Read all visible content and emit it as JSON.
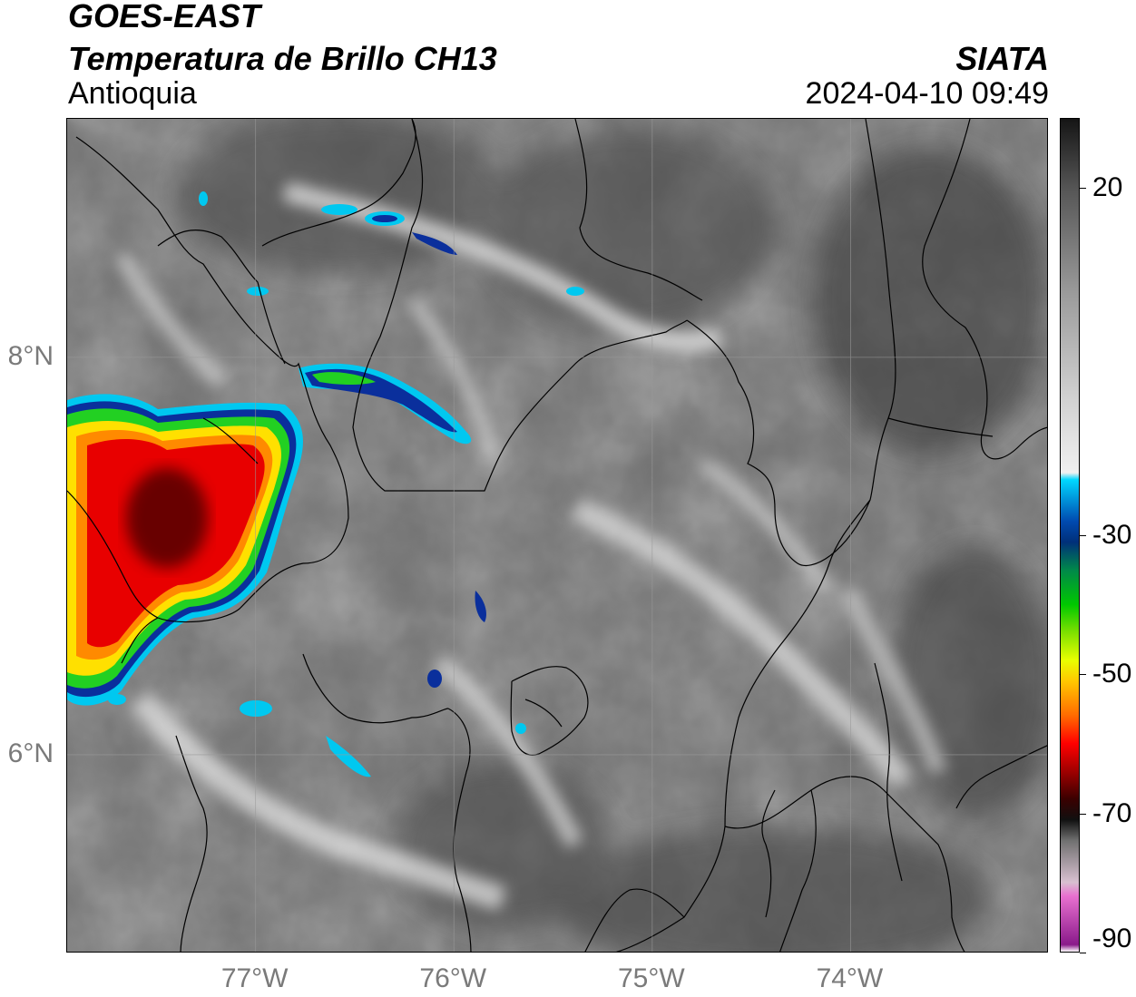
{
  "header": {
    "title": "GOES-EAST",
    "subtitle": "Temperatura de Brillo CH13",
    "region": "Antioquia",
    "organization": "SIATA",
    "datetime": "2024-04-10 09:49"
  },
  "map": {
    "lon_range": [
      -77.95,
      -73.0
    ],
    "lat_range": [
      5.0,
      9.2
    ],
    "lon_ticks": [
      {
        "value": -77,
        "label": "77°W"
      },
      {
        "value": -76,
        "label": "76°W"
      },
      {
        "value": -75,
        "label": "75°W"
      },
      {
        "value": -74,
        "label": "74°W"
      }
    ],
    "lat_ticks": [
      {
        "value": 8,
        "label": "8°N"
      },
      {
        "value": 6,
        "label": "6°N"
      }
    ],
    "grid": true,
    "colors": {
      "background_gray": "#7a7a7a",
      "cloud_white": "#f2f2f2",
      "cold_cyan": "#00c8f0",
      "cold_blue": "#0a2f9c",
      "cold_green": "#22d022",
      "cold_yellow": "#ffe000",
      "cold_orange": "#ff8a00",
      "cold_red": "#e80000",
      "core_darkred": "#4a0000",
      "border_line": "#000000"
    }
  },
  "colorbar": {
    "range": [
      -90,
      30
    ],
    "ticks": [
      {
        "value": 20,
        "label": "20"
      },
      {
        "value": -30,
        "label": "-30"
      },
      {
        "value": -50,
        "label": "-50"
      },
      {
        "value": -70,
        "label": "-70"
      },
      {
        "value": -90,
        "label": "-90"
      }
    ],
    "stops": [
      {
        "value": -90,
        "color": "#ffffff"
      },
      {
        "value": -89,
        "color": "#8a1a8a"
      },
      {
        "value": -82,
        "color": "#e870d0"
      },
      {
        "value": -80,
        "color": "#d8c0d0"
      },
      {
        "value": -74,
        "color": "#707070"
      },
      {
        "value": -71,
        "color": "#101010"
      },
      {
        "value": -68,
        "color": "#3a0000"
      },
      {
        "value": -64,
        "color": "#a00000"
      },
      {
        "value": -60,
        "color": "#ff0000"
      },
      {
        "value": -56,
        "color": "#ff6a00"
      },
      {
        "value": -51,
        "color": "#ffc800"
      },
      {
        "value": -48,
        "color": "#e8ff00"
      },
      {
        "value": -44,
        "color": "#7ee000"
      },
      {
        "value": -40,
        "color": "#00c800"
      },
      {
        "value": -35,
        "color": "#00884a"
      },
      {
        "value": -31,
        "color": "#00307a"
      },
      {
        "value": -28,
        "color": "#004ab0"
      },
      {
        "value": -25,
        "color": "#0090d8"
      },
      {
        "value": -22,
        "color": "#00d8ff"
      },
      {
        "value": -21,
        "color": "#f0f0f0"
      },
      {
        "value": -10,
        "color": "#d0d0d0"
      },
      {
        "value": 5,
        "color": "#9a9a9a"
      },
      {
        "value": 20,
        "color": "#555555"
      },
      {
        "value": 30,
        "color": "#151515"
      }
    ]
  }
}
